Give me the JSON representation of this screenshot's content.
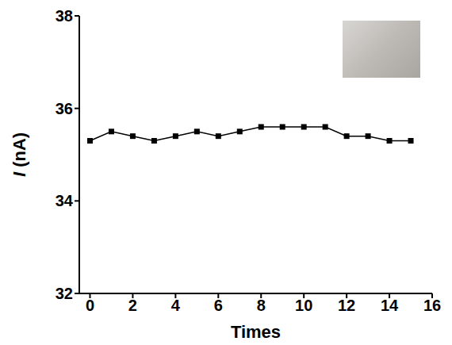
{
  "chart_data": {
    "type": "line",
    "x_label": "Times",
    "y_label": "I (nA)",
    "x": [
      0,
      1,
      2,
      3,
      4,
      5,
      6,
      7,
      8,
      9,
      10,
      11,
      12,
      13,
      14,
      15
    ],
    "values": [
      35.3,
      35.5,
      35.4,
      35.3,
      35.4,
      35.5,
      35.4,
      35.5,
      35.6,
      35.6,
      35.6,
      35.6,
      35.4,
      35.4,
      35.3,
      35.3
    ],
    "color": "#000000",
    "marker": "square",
    "line_style": "solid",
    "xlim": [
      -0.5,
      16
    ],
    "xticks": [
      0,
      2,
      4,
      6,
      8,
      10,
      12,
      14,
      16
    ],
    "ylim": [
      32,
      38
    ],
    "yticks": [
      32,
      34,
      36,
      38
    ],
    "grid": false
  }
}
